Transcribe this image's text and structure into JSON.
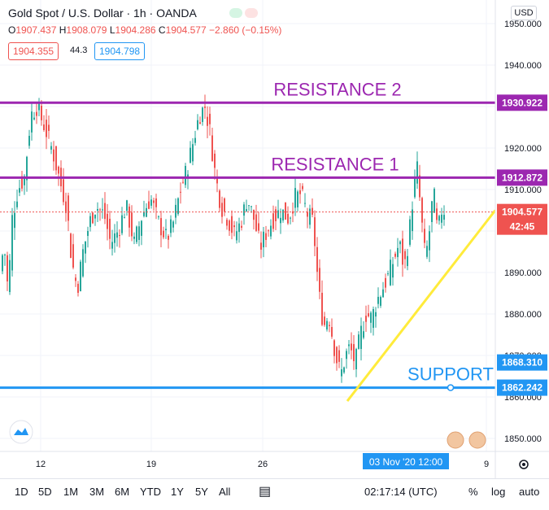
{
  "header": {
    "title": "Gold Spot / U.S. Dollar · 1h · OANDA",
    "ohlc": [
      {
        "k": "O",
        "v": "1907.437"
      },
      {
        "k": "H",
        "v": "1908.079"
      },
      {
        "k": "L",
        "v": "1904.286"
      },
      {
        "k": "C",
        "v": "1904.577"
      },
      {
        "k": "",
        "v": "−2.860 (−0.15%)"
      }
    ],
    "sell_price": "1904.355",
    "spread": "44.3",
    "buy_price": "1904.798",
    "currency": "USD"
  },
  "toolbar": {
    "ranges": [
      "1D",
      "5D",
      "1M",
      "3M",
      "6M",
      "YTD",
      "1Y",
      "5Y",
      "All"
    ],
    "time": "02:17:14 (UTC)",
    "percent": "%",
    "log": "log",
    "auto": "auto"
  },
  "colors": {
    "up": "#26a69a",
    "down": "#ef5350",
    "resistance": "#9c27b0",
    "support": "#2196f3",
    "trend": "#ffeb3b"
  },
  "chart_data": {
    "type": "candlestick",
    "title": "Gold Spot / U.S. Dollar · 1h · OANDA",
    "ylim": [
      1845,
      1952
    ],
    "y_ticks": [
      "1950.000",
      "1940.000",
      "1930.000",
      "1920.000",
      "1910.000",
      "1900.000",
      "1890.000",
      "1880.000",
      "1870.000",
      "1860.000",
      "1850.000"
    ],
    "x_ticks": [
      "12",
      "19",
      "26",
      "9"
    ],
    "crosshair_label": "03 Nov '20  12:00",
    "last_price": {
      "value": 1904.577,
      "label": "1904.577",
      "countdown": "42:45"
    },
    "levels": [
      {
        "name": "RESISTANCE 2",
        "value": 1930.922,
        "label": "1930.922"
      },
      {
        "name": "RESISTANCE 1",
        "value": 1912.872,
        "label": "1912.872"
      },
      {
        "name": "SUPPORT",
        "value": 1862.242,
        "label": "1862.242"
      }
    ],
    "extra_price_label": {
      "value": 1868.31,
      "label": "1868.310"
    },
    "trendline": {
      "from": 1859,
      "to": 1905
    },
    "waypoints": [
      [
        0,
        1890
      ],
      [
        5,
        1897
      ],
      [
        10,
        1885
      ],
      [
        15,
        1903
      ],
      [
        22,
        1910
      ],
      [
        30,
        1913
      ],
      [
        38,
        1928
      ],
      [
        45,
        1930
      ],
      [
        55,
        1925
      ],
      [
        65,
        1919
      ],
      [
        75,
        1911
      ],
      [
        82,
        1906
      ],
      [
        88,
        1893
      ],
      [
        95,
        1886
      ],
      [
        102,
        1895
      ],
      [
        110,
        1902
      ],
      [
        118,
        1906
      ],
      [
        128,
        1904
      ],
      [
        136,
        1897
      ],
      [
        145,
        1900
      ],
      [
        155,
        1906
      ],
      [
        165,
        1897
      ],
      [
        175,
        1904
      ],
      [
        185,
        1908
      ],
      [
        195,
        1902
      ],
      [
        205,
        1898
      ],
      [
        213,
        1902
      ],
      [
        222,
        1910
      ],
      [
        230,
        1915
      ],
      [
        238,
        1922
      ],
      [
        245,
        1928
      ],
      [
        252,
        1930
      ],
      [
        258,
        1924
      ],
      [
        265,
        1913
      ],
      [
        272,
        1906
      ],
      [
        280,
        1903
      ],
      [
        288,
        1899
      ],
      [
        296,
        1902
      ],
      [
        304,
        1908
      ],
      [
        312,
        1903
      ],
      [
        320,
        1896
      ],
      [
        328,
        1900
      ],
      [
        336,
        1903
      ],
      [
        345,
        1905
      ],
      [
        355,
        1903
      ],
      [
        362,
        1908
      ],
      [
        370,
        1909
      ],
      [
        378,
        1904
      ],
      [
        385,
        1902
      ],
      [
        392,
        1885
      ],
      [
        398,
        1877
      ],
      [
        404,
        1880
      ],
      [
        410,
        1873
      ],
      [
        416,
        1867
      ],
      [
        420,
        1866
      ],
      [
        425,
        1870
      ],
      [
        430,
        1872
      ],
      [
        437,
        1868
      ],
      [
        443,
        1875
      ],
      [
        450,
        1880
      ],
      [
        457,
        1879
      ],
      [
        463,
        1883
      ],
      [
        470,
        1886
      ],
      [
        477,
        1889
      ],
      [
        484,
        1893
      ],
      [
        491,
        1897
      ],
      [
        497,
        1891
      ],
      [
        503,
        1899
      ],
      [
        508,
        1909
      ],
      [
        513,
        1915
      ],
      [
        518,
        1903
      ],
      [
        523,
        1893
      ],
      [
        528,
        1900
      ],
      [
        533,
        1910
      ],
      [
        538,
        1899
      ],
      [
        543,
        1905
      ],
      [
        546,
        1905
      ]
    ]
  }
}
